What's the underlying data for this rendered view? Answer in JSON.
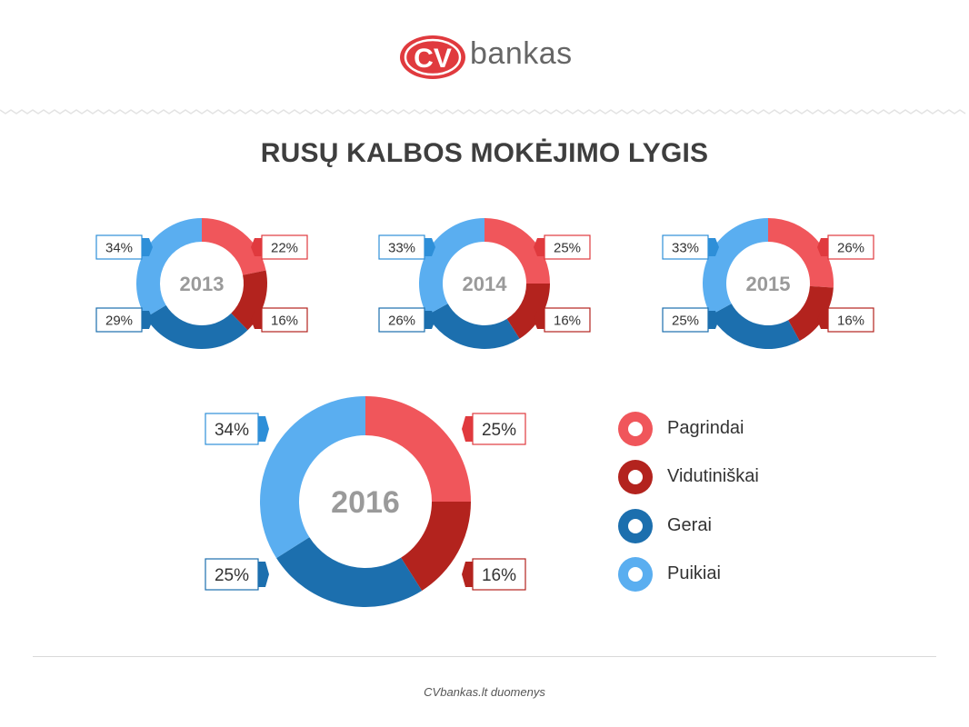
{
  "brand": {
    "logo_badge": "CV",
    "logo_text": "bankas",
    "red": "#e03a3e"
  },
  "title": "RUSŲ KALBOS MOKĖJIMO LYGIS",
  "legend": [
    {
      "label": "Pagrindai",
      "color": "#f0565b"
    },
    {
      "label": "Vidutiniškai",
      "color": "#b3231e"
    },
    {
      "label": "Gerai",
      "color": "#1c6fae"
    },
    {
      "label": "Puikiai",
      "color": "#5aaef0"
    }
  ],
  "footer": "CVbankas.lt duomenys",
  "chart_data": [
    {
      "type": "pie",
      "center_label": "2013",
      "categories": [
        "Pagrindai",
        "Vidutiniškai",
        "Gerai",
        "Puikiai"
      ],
      "values": [
        22,
        16,
        29,
        34
      ],
      "labels": [
        "22%",
        "16%",
        "29%",
        "34%"
      ]
    },
    {
      "type": "pie",
      "center_label": "2014",
      "categories": [
        "Pagrindai",
        "Vidutiniškai",
        "Gerai",
        "Puikiai"
      ],
      "values": [
        25,
        16,
        26,
        33
      ],
      "labels": [
        "25%",
        "16%",
        "26%",
        "33%"
      ]
    },
    {
      "type": "pie",
      "center_label": "2015",
      "categories": [
        "Pagrindai",
        "Vidutiniškai",
        "Gerai",
        "Puikiai"
      ],
      "values": [
        26,
        16,
        25,
        33
      ],
      "labels": [
        "26%",
        "16%",
        "25%",
        "33%"
      ]
    },
    {
      "type": "pie",
      "center_label": "2016",
      "categories": [
        "Pagrindai",
        "Vidutiniškai",
        "Gerai",
        "Puikiai"
      ],
      "values": [
        25,
        16,
        25,
        34
      ],
      "labels": [
        "25%",
        "16%",
        "25%",
        "34%"
      ]
    }
  ]
}
